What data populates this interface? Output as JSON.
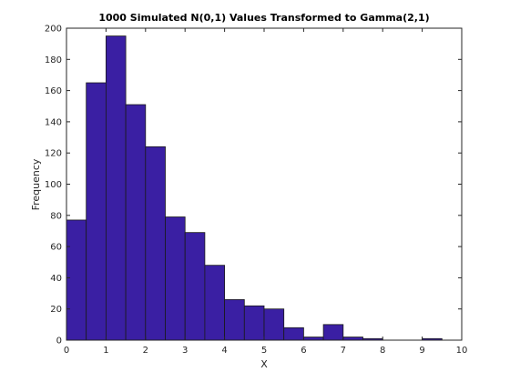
{
  "chart_data": {
    "type": "bar",
    "title": "1000 Simulated N(0,1) Values Transformed to Gamma(2,1)",
    "xlabel": "X",
    "ylabel": "Frequency",
    "xlim": [
      0,
      10
    ],
    "ylim": [
      0,
      200
    ],
    "bin_width": 0.5,
    "bins": [
      {
        "start": 0.0,
        "end": 0.5,
        "value": 77
      },
      {
        "start": 0.5,
        "end": 1.0,
        "value": 165
      },
      {
        "start": 1.0,
        "end": 1.5,
        "value": 195
      },
      {
        "start": 1.5,
        "end": 2.0,
        "value": 151
      },
      {
        "start": 2.0,
        "end": 2.5,
        "value": 124
      },
      {
        "start": 2.5,
        "end": 3.0,
        "value": 79
      },
      {
        "start": 3.0,
        "end": 3.5,
        "value": 69
      },
      {
        "start": 3.5,
        "end": 4.0,
        "value": 48
      },
      {
        "start": 4.0,
        "end": 4.5,
        "value": 26
      },
      {
        "start": 4.5,
        "end": 5.0,
        "value": 22
      },
      {
        "start": 5.0,
        "end": 5.5,
        "value": 20
      },
      {
        "start": 5.5,
        "end": 6.0,
        "value": 8
      },
      {
        "start": 6.0,
        "end": 6.5,
        "value": 2
      },
      {
        "start": 6.5,
        "end": 7.0,
        "value": 10
      },
      {
        "start": 7.0,
        "end": 7.5,
        "value": 2
      },
      {
        "start": 7.5,
        "end": 8.0,
        "value": 1
      },
      {
        "start": 8.0,
        "end": 8.5,
        "value": 0
      },
      {
        "start": 8.5,
        "end": 9.0,
        "value": 0
      },
      {
        "start": 9.0,
        "end": 9.5,
        "value": 1
      }
    ],
    "x_ticks": [
      "0",
      "1",
      "2",
      "3",
      "4",
      "5",
      "6",
      "7",
      "8",
      "9",
      "10"
    ],
    "y_ticks": [
      "0",
      "20",
      "40",
      "60",
      "80",
      "100",
      "120",
      "140",
      "160",
      "180",
      "200"
    ],
    "grid": false,
    "bar_color": "#3a1fa3",
    "bar_edge_color": "#1a1a1a"
  }
}
